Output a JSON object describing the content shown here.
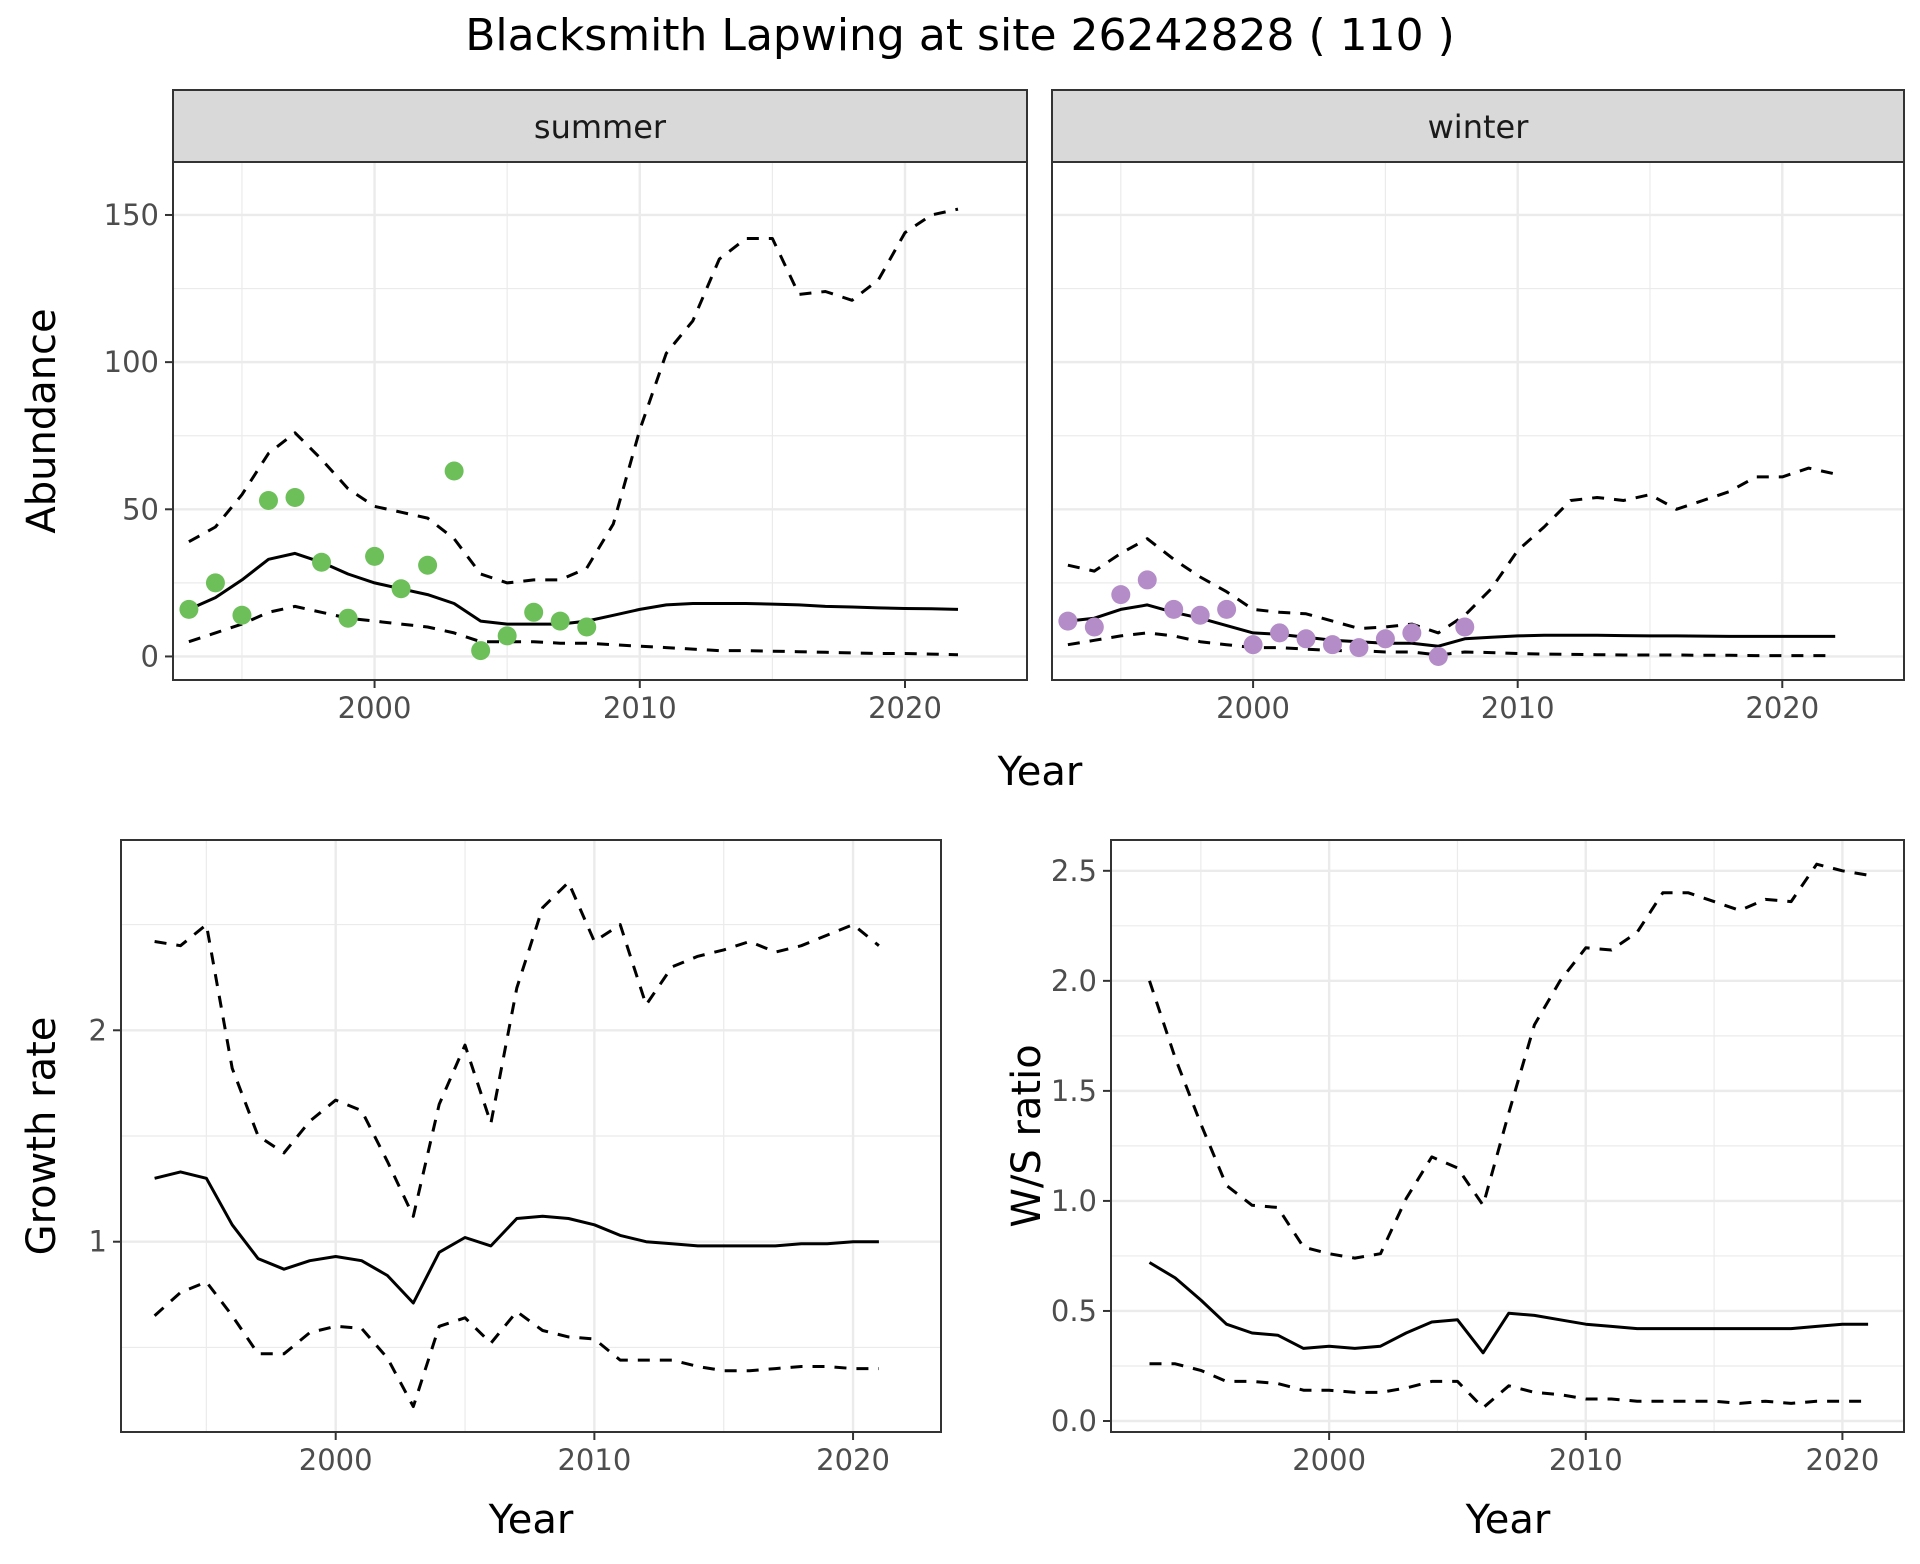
{
  "figure": {
    "title": "Blacksmith Lapwing at site 26242828 ( 110 )"
  },
  "colors": {
    "summer_points": "#6dbf5a",
    "winter_points": "#b48cc8",
    "line": "#000000",
    "grid": "#ebebeb",
    "strip_fill": "#d9d9d9"
  },
  "chart_data": [
    {
      "id": "abundance",
      "type": "line",
      "facets": [
        "summer",
        "winter"
      ],
      "xlabel": "Year",
      "ylabel": "Abundance",
      "xlim": [
        1992.4,
        2024.6
      ],
      "ylim": [
        -8,
        168
      ],
      "xticks": [
        2000,
        2010,
        2020
      ],
      "yticks": [
        0,
        50,
        100,
        150
      ],
      "panels": [
        {
          "facet": "summer",
          "mean": {
            "x": [
              1993,
              1994,
              1995,
              1996,
              1997,
              1998,
              1999,
              2000,
              2001,
              2002,
              2003,
              2004,
              2005,
              2006,
              2007,
              2008,
              2009,
              2010,
              2011,
              2012,
              2013,
              2014,
              2015,
              2016,
              2017,
              2018,
              2019,
              2020,
              2021,
              2022
            ],
            "y": [
              16,
              20,
              26,
              33,
              35,
              32,
              28,
              25,
              23,
              21,
              18,
              12,
              11,
              11,
              11,
              12,
              14,
              16,
              17.5,
              18,
              18,
              18,
              17.8,
              17.5,
              17,
              16.8,
              16.5,
              16.3,
              16.2,
              16
            ]
          },
          "upper": {
            "x": [
              1993,
              1994,
              1995,
              1996,
              1997,
              1998,
              1999,
              2000,
              2001,
              2002,
              2003,
              2004,
              2005,
              2006,
              2007,
              2008,
              2009,
              2010,
              2011,
              2012,
              2013,
              2014,
              2015,
              2016,
              2017,
              2018,
              2019,
              2020,
              2021,
              2022
            ],
            "y": [
              39,
              44,
              55,
              69,
              76,
              67,
              57,
              51,
              49,
              47,
              40,
              28,
              25,
              26,
              26,
              30,
              45,
              77,
              103,
              114,
              135,
              142,
              142,
              123,
              124,
              121,
              128,
              144,
              150,
              152
            ]
          },
          "lower": {
            "x": [
              1993,
              1994,
              1995,
              1996,
              1997,
              1998,
              1999,
              2000,
              2001,
              2002,
              2003,
              2004,
              2005,
              2006,
              2007,
              2008,
              2009,
              2010,
              2011,
              2012,
              2013,
              2014,
              2015,
              2016,
              2017,
              2018,
              2019,
              2020,
              2021,
              2022
            ],
            "y": [
              5,
              8,
              11,
              15,
              17,
              15,
              13,
              12,
              11,
              10,
              8,
              5,
              5,
              5,
              4.5,
              4.5,
              4,
              3.5,
              3,
              2.5,
              2,
              2,
              1.8,
              1.6,
              1.4,
              1.2,
              1,
              1,
              0.8,
              0.6
            ]
          },
          "points": {
            "x": [
              1993,
              1994,
              1995,
              1996,
              1997,
              1998,
              1999,
              2000,
              2001,
              2002,
              2003,
              2004,
              2005,
              2006,
              2007,
              2008
            ],
            "y": [
              16,
              25,
              14,
              53,
              54,
              32,
              13,
              34,
              23,
              31,
              63,
              2,
              7,
              15,
              12,
              10
            ]
          }
        },
        {
          "facet": "winter",
          "mean": {
            "x": [
              1993,
              1994,
              1995,
              1996,
              1997,
              1998,
              1999,
              2000,
              2001,
              2002,
              2003,
              2004,
              2005,
              2006,
              2007,
              2008,
              2009,
              2010,
              2011,
              2012,
              2013,
              2014,
              2015,
              2016,
              2017,
              2018,
              2019,
              2020,
              2021,
              2022
            ],
            "y": [
              12,
              13,
              16,
              17.5,
              15,
              13,
              10.5,
              8,
              7.5,
              6.5,
              5.5,
              5,
              4.5,
              4.5,
              3.5,
              6,
              6.5,
              7,
              7.2,
              7.2,
              7.2,
              7.1,
              7,
              7,
              6.9,
              6.8,
              6.8,
              6.8,
              6.8,
              6.8
            ]
          },
          "upper": {
            "x": [
              1993,
              1994,
              1995,
              1996,
              1997,
              1998,
              1999,
              2000,
              2001,
              2002,
              2003,
              2004,
              2005,
              2006,
              2007,
              2008,
              2009,
              2010,
              2011,
              2012,
              2013,
              2014,
              2015,
              2016,
              2017,
              2018,
              2019,
              2020,
              2021,
              2022
            ],
            "y": [
              31,
              29,
              35,
              40,
              33,
              27,
              22,
              16,
              15,
              14.5,
              12,
              9.5,
              10,
              11,
              8,
              14,
              23,
              36,
              44,
              53,
              54,
              53,
              55,
              50,
              53,
              56,
              61,
              61,
              64,
              62
            ]
          },
          "lower": {
            "x": [
              1993,
              1994,
              1995,
              1996,
              1997,
              1998,
              1999,
              2000,
              2001,
              2002,
              2003,
              2004,
              2005,
              2006,
              2007,
              2008,
              2009,
              2010,
              2011,
              2012,
              2013,
              2014,
              2015,
              2016,
              2017,
              2018,
              2019,
              2020,
              2021,
              2022
            ],
            "y": [
              4,
              5.5,
              7,
              8,
              7,
              5,
              4,
              3,
              3,
              2.5,
              2,
              2,
              1.5,
              1.5,
              0.5,
              1.5,
              1.3,
              1,
              0.8,
              0.7,
              0.6,
              0.5,
              0.5,
              0.5,
              0.4,
              0.4,
              0.3,
              0.3,
              0.3,
              0.3
            ]
          },
          "points": {
            "x": [
              1993,
              1994,
              1995,
              1996,
              1997,
              1998,
              1999,
              2000,
              2001,
              2002,
              2003,
              2004,
              2005,
              2006,
              2007,
              2008
            ],
            "y": [
              12,
              10,
              21,
              26,
              16,
              14,
              16,
              4,
              8,
              6,
              4,
              3,
              6,
              8,
              0,
              10
            ]
          }
        }
      ]
    },
    {
      "id": "growth",
      "type": "line",
      "xlabel": "Year",
      "ylabel": "Growth rate",
      "xlim": [
        1991.7,
        2023.4
      ],
      "ylim": [
        0.1,
        2.9
      ],
      "xticks": [
        2000,
        2010,
        2020
      ],
      "yticks": [
        1,
        2
      ],
      "mean": {
        "x": [
          1993,
          1994,
          1995,
          1996,
          1997,
          1998,
          1999,
          2000,
          2001,
          2002,
          2003,
          2004,
          2005,
          2006,
          2007,
          2008,
          2009,
          2010,
          2011,
          2012,
          2013,
          2014,
          2015,
          2016,
          2017,
          2018,
          2019,
          2020,
          2021
        ],
        "y": [
          1.3,
          1.33,
          1.3,
          1.08,
          0.92,
          0.87,
          0.91,
          0.93,
          0.91,
          0.84,
          0.71,
          0.95,
          1.02,
          0.98,
          1.11,
          1.12,
          1.11,
          1.08,
          1.03,
          1.0,
          0.99,
          0.98,
          0.98,
          0.98,
          0.98,
          0.99,
          0.99,
          1.0,
          1.0
        ]
      },
      "upper": {
        "x": [
          1993,
          1994,
          1995,
          1996,
          1997,
          1998,
          1999,
          2000,
          2001,
          2002,
          2003,
          2004,
          2005,
          2006,
          2007,
          2008,
          2009,
          2010,
          2011,
          2012,
          2013,
          2014,
          2015,
          2016,
          2017,
          2018,
          2019,
          2020,
          2021
        ],
        "y": [
          2.42,
          2.4,
          2.5,
          1.82,
          1.5,
          1.42,
          1.57,
          1.67,
          1.62,
          1.38,
          1.12,
          1.65,
          1.93,
          1.56,
          2.2,
          2.58,
          2.7,
          2.42,
          2.5,
          2.12,
          2.3,
          2.35,
          2.38,
          2.42,
          2.37,
          2.4,
          2.45,
          2.5,
          2.4
        ]
      },
      "lower": {
        "x": [
          1993,
          1994,
          1995,
          1996,
          1997,
          1998,
          1999,
          2000,
          2001,
          2002,
          2003,
          2004,
          2005,
          2006,
          2007,
          2008,
          2009,
          2010,
          2011,
          2012,
          2013,
          2014,
          2015,
          2016,
          2017,
          2018,
          2019,
          2020,
          2021
        ],
        "y": [
          0.65,
          0.76,
          0.81,
          0.65,
          0.47,
          0.47,
          0.57,
          0.6,
          0.59,
          0.45,
          0.22,
          0.6,
          0.64,
          0.52,
          0.67,
          0.58,
          0.55,
          0.54,
          0.44,
          0.44,
          0.44,
          0.41,
          0.39,
          0.39,
          0.4,
          0.41,
          0.41,
          0.4,
          0.4
        ]
      }
    },
    {
      "id": "ws_ratio",
      "type": "line",
      "xlabel": "Year",
      "ylabel": "W/S ratio",
      "xlim": [
        1991.5,
        2022.4
      ],
      "ylim": [
        -0.05,
        2.64
      ],
      "xticks": [
        2000,
        2010,
        2020
      ],
      "yticks": [
        0.0,
        0.5,
        1.0,
        1.5,
        2.0,
        2.5
      ],
      "ytick_labels": [
        "0.0",
        "0.5",
        "1.0",
        "1.5",
        "2.0",
        "2.5"
      ],
      "mean": {
        "x": [
          1993,
          1994,
          1995,
          1996,
          1997,
          1998,
          1999,
          2000,
          2001,
          2002,
          2003,
          2004,
          2005,
          2006,
          2007,
          2008,
          2009,
          2010,
          2011,
          2012,
          2013,
          2014,
          2015,
          2016,
          2017,
          2018,
          2019,
          2020,
          2021
        ],
        "y": [
          0.72,
          0.65,
          0.55,
          0.44,
          0.4,
          0.39,
          0.33,
          0.34,
          0.33,
          0.34,
          0.4,
          0.45,
          0.46,
          0.31,
          0.49,
          0.48,
          0.46,
          0.44,
          0.43,
          0.42,
          0.42,
          0.42,
          0.42,
          0.42,
          0.42,
          0.42,
          0.43,
          0.44,
          0.44
        ]
      },
      "upper": {
        "x": [
          1993,
          1994,
          1995,
          1996,
          1997,
          1998,
          1999,
          2000,
          2001,
          2002,
          2003,
          2004,
          2005,
          2006,
          2007,
          2008,
          2009,
          2010,
          2011,
          2012,
          2013,
          2014,
          2015,
          2016,
          2017,
          2018,
          2019,
          2020,
          2021
        ],
        "y": [
          2.0,
          1.65,
          1.35,
          1.07,
          0.98,
          0.97,
          0.79,
          0.76,
          0.74,
          0.76,
          1.01,
          1.2,
          1.15,
          0.98,
          1.4,
          1.8,
          2.0,
          2.15,
          2.14,
          2.22,
          2.4,
          2.4,
          2.36,
          2.32,
          2.37,
          2.36,
          2.53,
          2.5,
          2.48
        ]
      },
      "lower": {
        "x": [
          1993,
          1994,
          1995,
          1996,
          1997,
          1998,
          1999,
          2000,
          2001,
          2002,
          2003,
          2004,
          2005,
          2006,
          2007,
          2008,
          2009,
          2010,
          2011,
          2012,
          2013,
          2014,
          2015,
          2016,
          2017,
          2018,
          2019,
          2020,
          2021
        ],
        "y": [
          0.26,
          0.26,
          0.23,
          0.18,
          0.18,
          0.17,
          0.14,
          0.14,
          0.13,
          0.13,
          0.15,
          0.18,
          0.18,
          0.06,
          0.16,
          0.13,
          0.12,
          0.1,
          0.1,
          0.09,
          0.09,
          0.09,
          0.09,
          0.08,
          0.09,
          0.08,
          0.09,
          0.09,
          0.09
        ]
      }
    }
  ]
}
